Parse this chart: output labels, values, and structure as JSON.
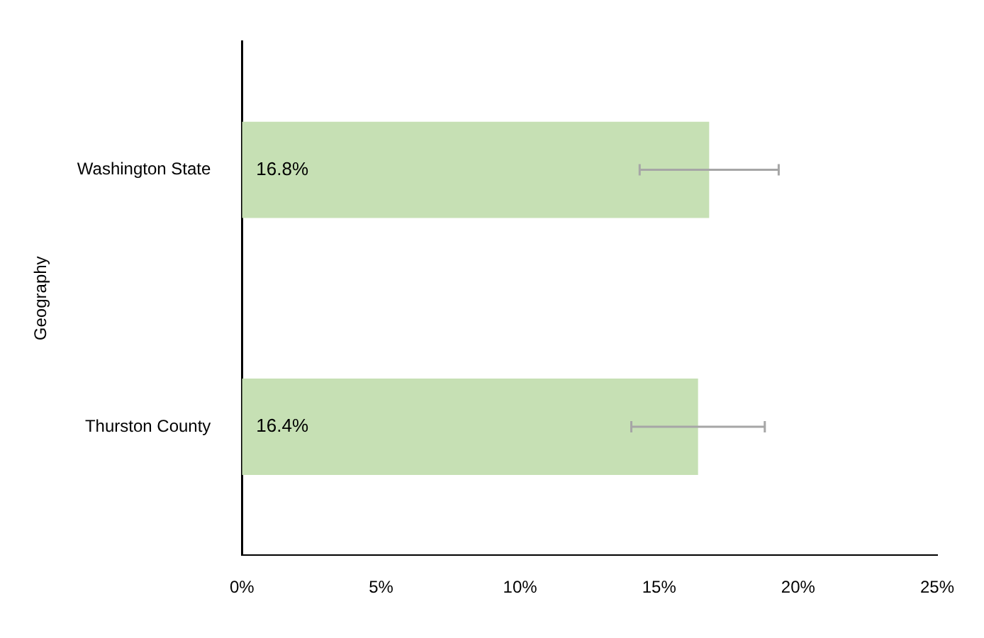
{
  "chart_data": {
    "type": "bar",
    "orientation": "horizontal",
    "ylabel": "Geography",
    "categories": [
      "Washington State",
      "Thurston County"
    ],
    "series": [
      {
        "color": "#c6e0b4",
        "values": [
          16.8,
          16.4
        ],
        "errors": [
          [
            14.3,
            19.3
          ],
          [
            14.0,
            18.8
          ]
        ],
        "value_labels": [
          "16.8%",
          "16.4%"
        ]
      }
    ],
    "xlim": [
      0,
      25
    ],
    "xticks": [
      {
        "value": 0,
        "label": "0%"
      },
      {
        "value": 5,
        "label": "5%"
      },
      {
        "value": 10,
        "label": "10%"
      },
      {
        "value": 15,
        "label": "15%"
      },
      {
        "value": 20,
        "label": "20%"
      },
      {
        "value": 25,
        "label": "25%"
      }
    ],
    "grid": false,
    "legend": false
  }
}
